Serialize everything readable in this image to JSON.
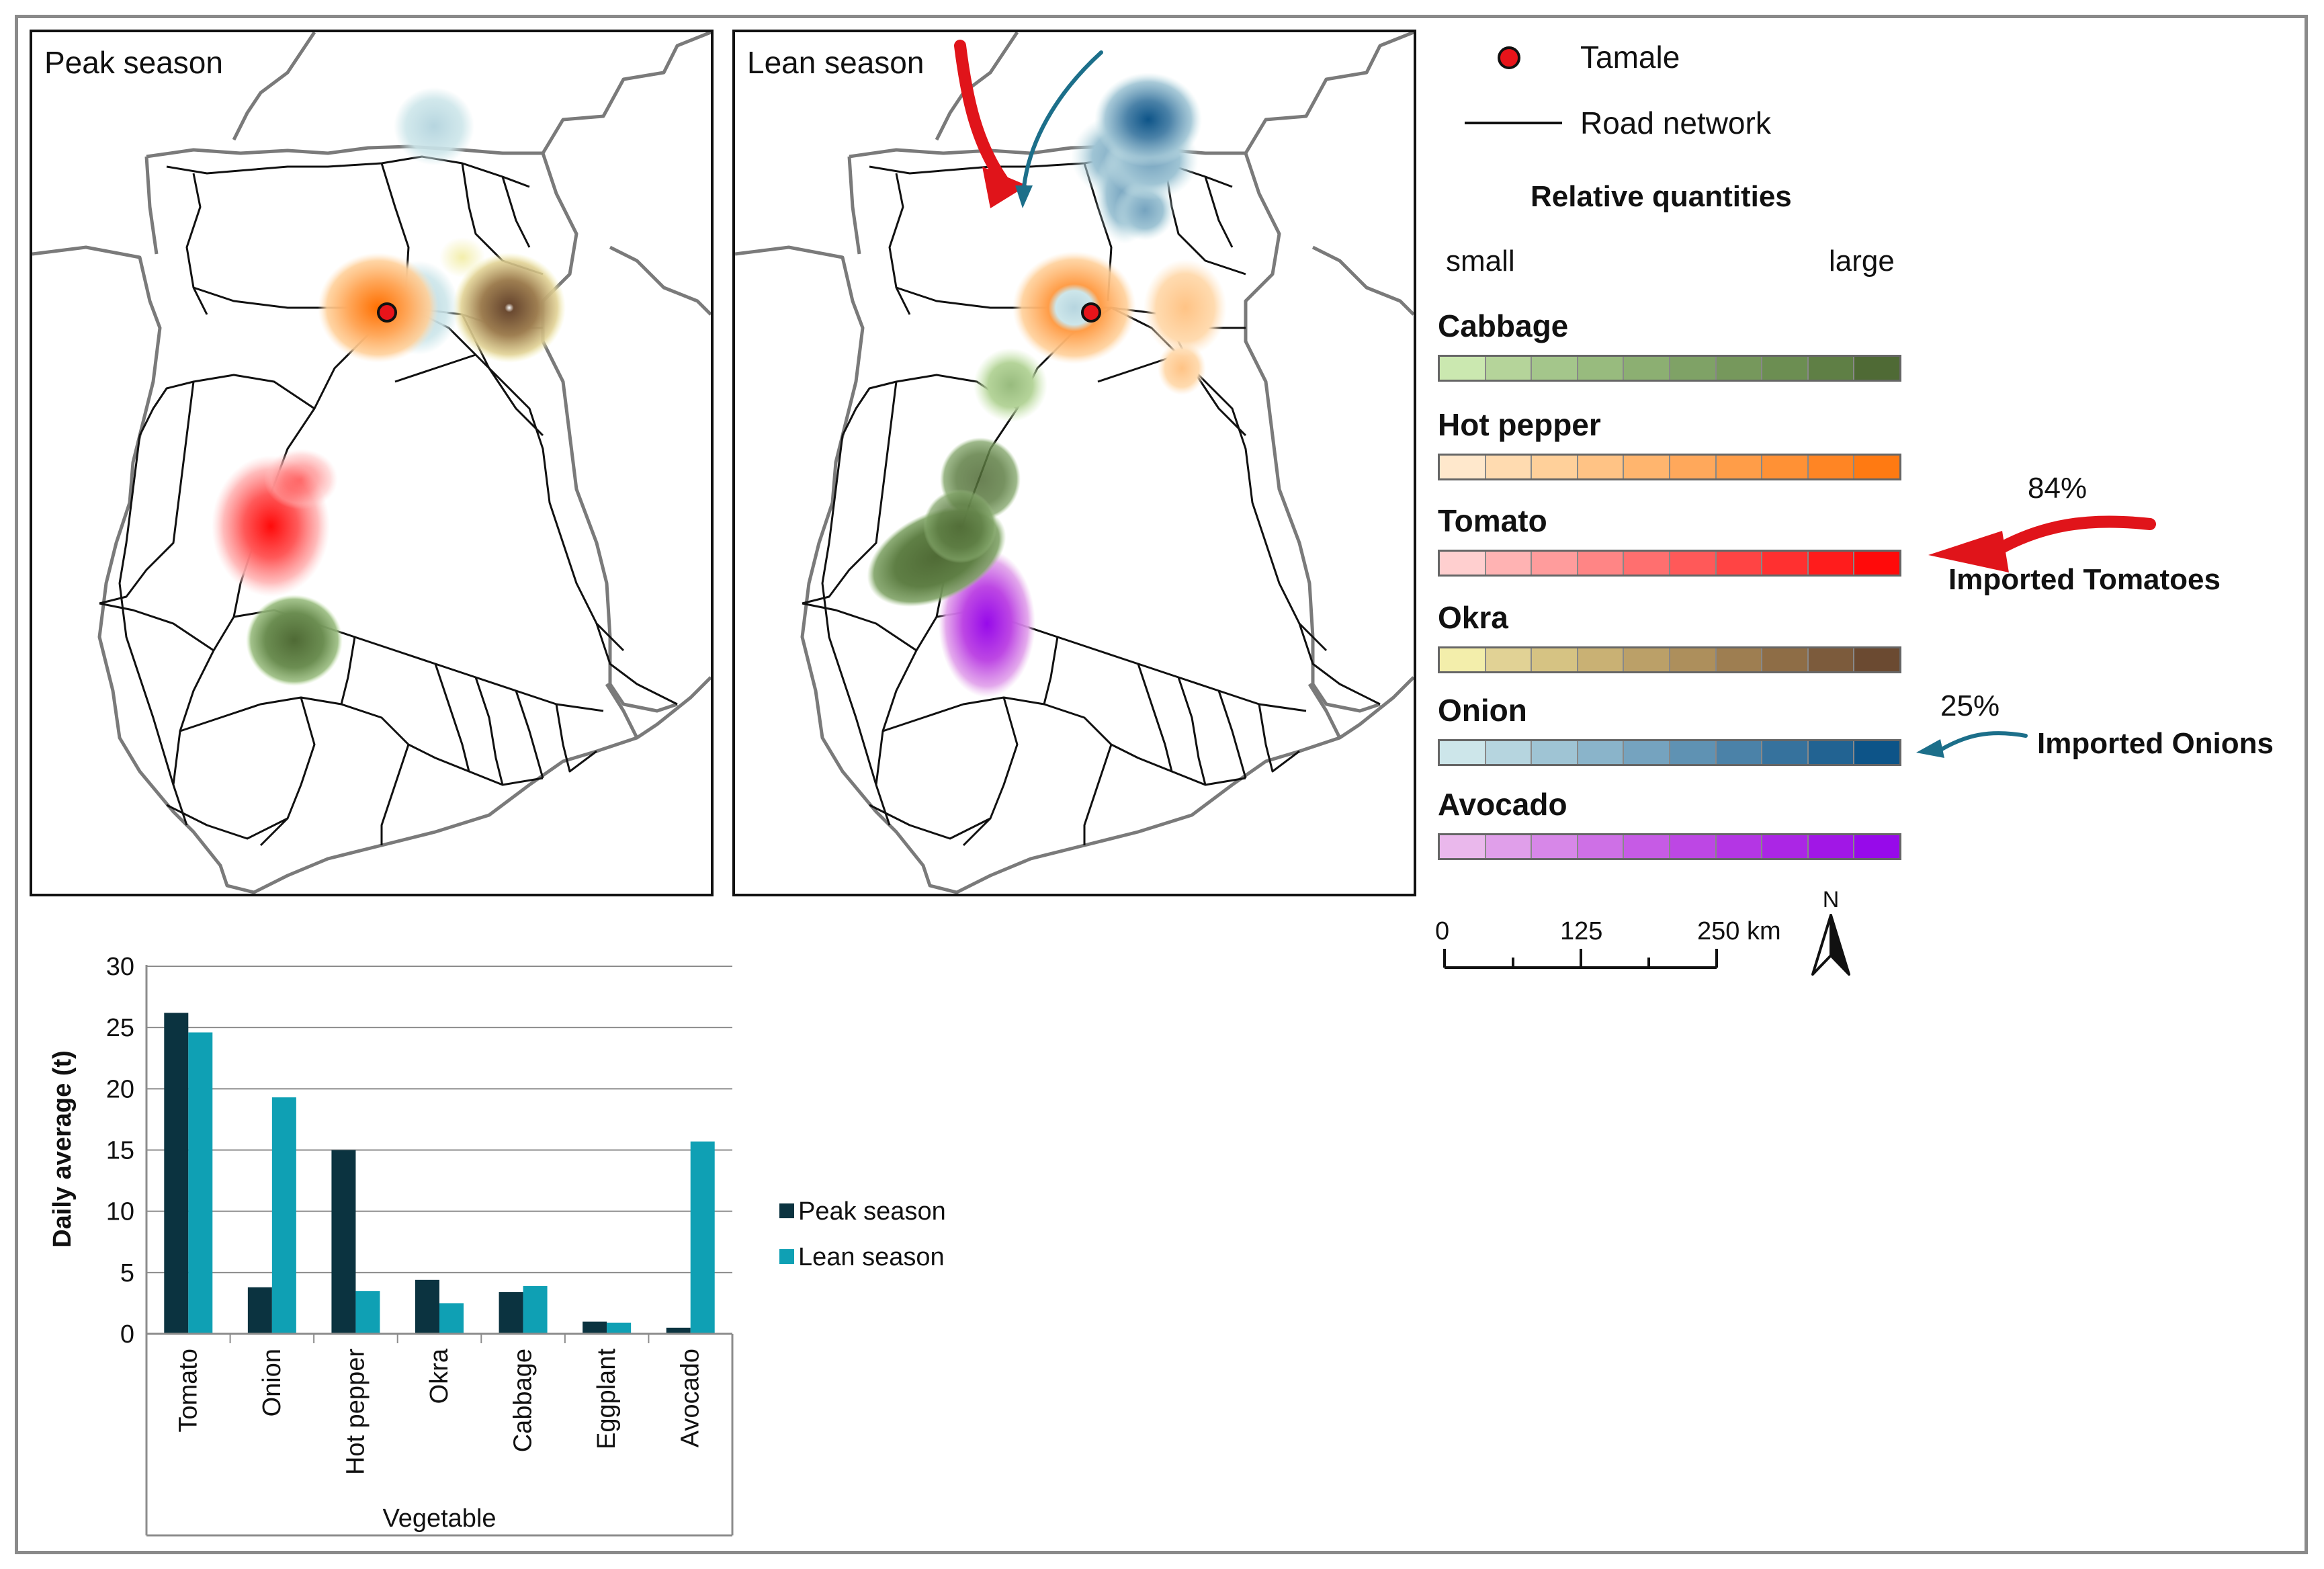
{
  "maps": {
    "peak_title": "Peak season",
    "lean_title": "Lean season"
  },
  "legend": {
    "tamale_label": "Tamale",
    "road_label": "Road network",
    "quantities_title": "Relative quantities",
    "small_label": "small",
    "large_label": "large",
    "items": [
      {
        "label": "Cabbage",
        "colors": [
          "#cbe8b0",
          "#b5d49a",
          "#a4c68b",
          "#98bb7e",
          "#8caf72",
          "#7fa266",
          "#76985c",
          "#6c8e52",
          "#5f7f45",
          "#4f6a35"
        ]
      },
      {
        "label": "Hot pepper",
        "colors": [
          "#ffe8cc",
          "#ffdbb0",
          "#ffd09a",
          "#ffc385",
          "#ffb56e",
          "#ffa85b",
          "#ff9d48",
          "#ff9135",
          "#ff8524",
          "#ff7a12"
        ]
      },
      {
        "label": "Tomato",
        "colors": [
          "#ffcfcf",
          "#ffb3b3",
          "#ff9c9c",
          "#ff8585",
          "#ff6f6f",
          "#ff5959",
          "#ff4444",
          "#ff3030",
          "#ff1c1c",
          "#ff0a0a"
        ]
      },
      {
        "label": "Okra",
        "colors": [
          "#f3eeab",
          "#e1d295",
          "#d6c383",
          "#c9b174",
          "#bba068",
          "#ad8f5c",
          "#9e7e51",
          "#8e6d46",
          "#7c5b3c",
          "#6b4a31"
        ]
      },
      {
        "label": "Onion",
        "colors": [
          "#cde6ea",
          "#b6d5df",
          "#9fc4d4",
          "#8ab4ca",
          "#75a3bf",
          "#5f92b3",
          "#4b82a8",
          "#36729d",
          "#226392",
          "#0d5488"
        ]
      },
      {
        "label": "Avocado",
        "colors": [
          "#eab8ec",
          "#e09fea",
          "#d787e8",
          "#ce70e6",
          "#c65be5",
          "#bd47e4",
          "#b436e4",
          "#ab26e5",
          "#a117e6",
          "#970aea"
        ]
      }
    ]
  },
  "imports": {
    "tomato_pct": "84%",
    "tomato_label": "Imported Tomatoes",
    "onion_pct": "25%",
    "onion_label": "Imported Onions"
  },
  "scale_bar": {
    "ticks": [
      "0",
      "125",
      "250 km"
    ],
    "north_label": "N"
  },
  "chart_data": {
    "type": "bar",
    "categories": [
      "Tomato",
      "Onion",
      "Hot pepper",
      "Okra",
      "Cabbage",
      "Eggplant",
      "Avocado"
    ],
    "series": [
      {
        "name": "Peak season",
        "color": "#0b3340",
        "values": [
          26.2,
          3.8,
          15.0,
          4.4,
          3.4,
          1.0,
          0.5
        ]
      },
      {
        "name": "Lean season",
        "color": "#0fa0b4",
        "values": [
          24.6,
          19.3,
          3.5,
          2.5,
          3.9,
          0.9,
          15.7
        ]
      }
    ],
    "ylabel": "Daily average (t)",
    "xlabel": "Vegetable",
    "ylim": [
      0,
      30
    ],
    "yticks": [
      0,
      5,
      10,
      15,
      20,
      25,
      30
    ],
    "grid": true,
    "legend_position": "right"
  }
}
